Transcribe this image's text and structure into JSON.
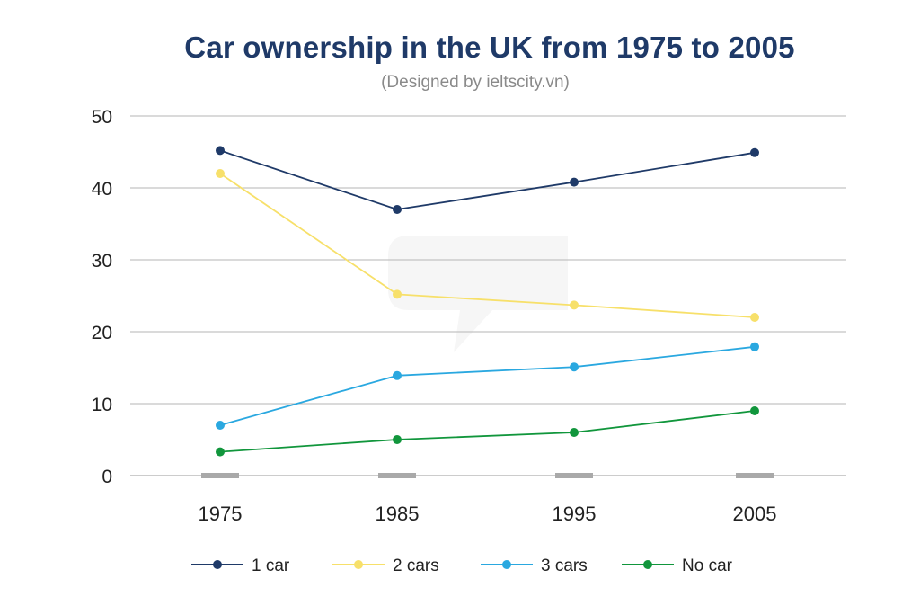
{
  "chart_data": {
    "type": "line",
    "title": "Car ownership in the UK from 1975 to 2005",
    "subtitle": "(Designed by ieltscity.vn)",
    "xlabel": "",
    "ylabel": "",
    "categories": [
      "1975",
      "1985",
      "1995",
      "2005"
    ],
    "ylim": [
      0,
      50
    ],
    "yticks": [
      0,
      10,
      20,
      30,
      40,
      50
    ],
    "grid": true,
    "legend_position": "bottom",
    "series": [
      {
        "name": "1 car",
        "color": "#1f3a68",
        "values": [
          45.2,
          37,
          40.8,
          44.9
        ]
      },
      {
        "name": "2 cars",
        "color": "#f7e06a",
        "values": [
          42,
          25.2,
          23.7,
          22
        ]
      },
      {
        "name": "3 cars",
        "color": "#2aa8e0",
        "values": [
          7,
          13.9,
          15.1,
          17.9
        ]
      },
      {
        "name": "No car",
        "color": "#11963c",
        "values": [
          3.3,
          5,
          6,
          9
        ]
      }
    ]
  }
}
